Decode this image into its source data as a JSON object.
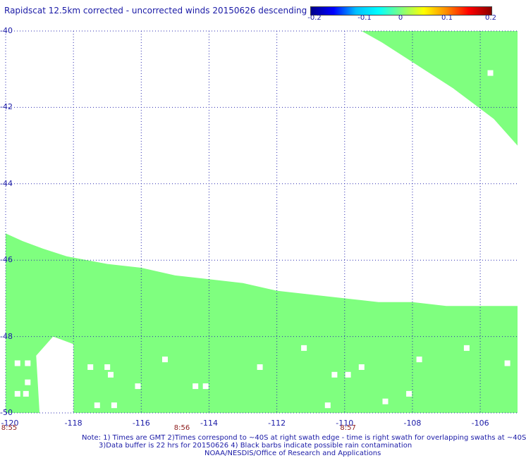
{
  "title": "Rapidscat 12.5km corrected - uncorrected winds 20150626 descending",
  "colorbar": {
    "ticks": [
      "-0.2",
      "-0.1",
      "0",
      "0.1",
      "0.2"
    ],
    "colors": [
      "#00008b",
      "#0000ff",
      "#00bfff",
      "#00ffff",
      "#7fff7f",
      "#ffff00",
      "#ff8c00",
      "#ff0000",
      "#8b0000"
    ]
  },
  "chart_data": {
    "type": "heatmap",
    "title": "Rapidscat 12.5km corrected - uncorrected winds 20150626 descending",
    "x_ticks": [
      "-120",
      "-118",
      "-116",
      "-114",
      "-112",
      "-110",
      "-108",
      "-106"
    ],
    "y_ticks": [
      "-40",
      "-42",
      "-44",
      "-46",
      "-48",
      "-50"
    ],
    "xlim": [
      -120,
      -104.9
    ],
    "ylim": [
      -50,
      -40
    ],
    "fill_value": 0,
    "fill_color": "#7fff7f",
    "grid": true,
    "time_labels": [
      {
        "text": "8:55",
        "lon": -120
      },
      {
        "text": "8:56",
        "lon": -114.8
      },
      {
        "text": "8:57",
        "lon": -109.9
      }
    ],
    "swath_upper_right": {
      "upper_edge": [
        [
          -109.5,
          -40.0
        ],
        [
          -108.9,
          -40.3
        ],
        [
          -108.2,
          -40.7
        ],
        [
          -107.5,
          -41.1
        ],
        [
          -106.8,
          -41.5
        ],
        [
          -106.2,
          -41.9
        ],
        [
          -105.6,
          -42.3
        ],
        [
          -104.9,
          -43.0
        ]
      ],
      "lon_max": -104.9
    },
    "swath_lower": {
      "lat_min": -50,
      "upper_edge": [
        [
          -120,
          -45.3
        ],
        [
          -119.5,
          -45.5
        ],
        [
          -118.9,
          -45.7
        ],
        [
          -118.2,
          -45.9
        ],
        [
          -117.0,
          -46.1
        ],
        [
          -116.0,
          -46.2
        ],
        [
          -115.0,
          -46.4
        ],
        [
          -114.0,
          -46.5
        ],
        [
          -113.0,
          -46.6
        ],
        [
          -112.0,
          -46.8
        ],
        [
          -111.0,
          -46.9
        ],
        [
          -110.0,
          -47.0
        ],
        [
          -109.0,
          -47.1
        ],
        [
          -108.0,
          -47.1
        ],
        [
          -107.0,
          -47.2
        ],
        [
          -106.0,
          -47.2
        ],
        [
          -104.9,
          -47.2
        ]
      ],
      "gap_edge": [
        [
          -119.0,
          -50.0
        ],
        [
          -119.1,
          -48.5
        ],
        [
          -118.6,
          -48.0
        ],
        [
          -118.0,
          -48.2
        ],
        [
          -118.0,
          -50.0
        ]
      ],
      "lon_max": -104.9
    },
    "missing_cells": [
      [
        -119.65,
        -48.7
      ],
      [
        -119.35,
        -48.7
      ],
      [
        -119.35,
        -49.2
      ],
      [
        -119.65,
        -49.5
      ],
      [
        -119.4,
        -49.5
      ],
      [
        -117.5,
        -48.8
      ],
      [
        -117.0,
        -48.8
      ],
      [
        -116.9,
        -49.0
      ],
      [
        -117.3,
        -49.8
      ],
      [
        -116.8,
        -49.8
      ],
      [
        -116.1,
        -49.3
      ],
      [
        -115.3,
        -48.6
      ],
      [
        -114.4,
        -49.3
      ],
      [
        -114.1,
        -49.3
      ],
      [
        -112.5,
        -48.8
      ],
      [
        -111.2,
        -48.3
      ],
      [
        -110.5,
        -49.8
      ],
      [
        -110.3,
        -49.0
      ],
      [
        -109.9,
        -49.0
      ],
      [
        -109.5,
        -48.8
      ],
      [
        -108.8,
        -49.7
      ],
      [
        -108.1,
        -49.5
      ],
      [
        -107.8,
        -48.6
      ],
      [
        -106.4,
        -48.3
      ],
      [
        -105.2,
        -48.7
      ],
      [
        -105.7,
        -41.1
      ]
    ]
  },
  "notes": {
    "line1": "Note: 1) Times are GMT 2)Times correspond to ~40S at right swath edge - time is right swath for overlapping swaths at ~40S",
    "line2": "3)Data buffer is 22 hrs for 20150626 4) Black barbs indicate possible rain contamination",
    "line3": "NOAA/NESDIS/Office of Research and Applications"
  }
}
